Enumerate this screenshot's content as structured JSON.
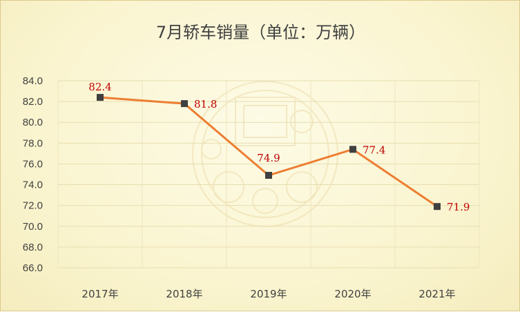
{
  "chart_data": {
    "type": "line",
    "title": "7月轿车销量（单位：万辆）",
    "categories": [
      "2017年",
      "2018年",
      "2019年",
      "2020年",
      "2021年"
    ],
    "series": [
      {
        "values": [
          82.4,
          81.8,
          74.9,
          77.4,
          71.9
        ],
        "labels": [
          "82.4",
          "81.8",
          "74.9",
          "77.4",
          "71.9"
        ]
      }
    ],
    "ylim": [
      66.0,
      84.0
    ],
    "yticks": [
      "66.0",
      "68.0",
      "70.0",
      "72.0",
      "74.0",
      "76.0",
      "78.0",
      "80.0",
      "82.0",
      "84.0"
    ],
    "grid": true,
    "legend": "none",
    "colors": {
      "line": "#ed7d31",
      "marker": "#404040",
      "data_label": "#c00000"
    }
  }
}
